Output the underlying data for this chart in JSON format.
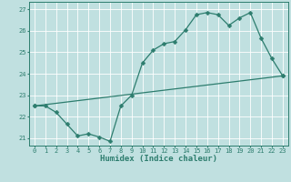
{
  "title": "",
  "xlabel": "Humidex (Indice chaleur)",
  "bg_color": "#c0e0e0",
  "grid_color": "#ffffff",
  "line_color": "#2d7d6e",
  "xlim": [
    -0.5,
    23.5
  ],
  "ylim": [
    20.65,
    27.35
  ],
  "xticks": [
    0,
    1,
    2,
    3,
    4,
    5,
    6,
    7,
    8,
    9,
    10,
    11,
    12,
    13,
    14,
    15,
    16,
    17,
    18,
    19,
    20,
    21,
    22,
    23
  ],
  "yticks": [
    21,
    22,
    23,
    24,
    25,
    26,
    27
  ],
  "line1_x": [
    0,
    1,
    2,
    3,
    4,
    5,
    6,
    7,
    8,
    9,
    10,
    11,
    12,
    13,
    14,
    15,
    16,
    17,
    18,
    19,
    20,
    21,
    22,
    23
  ],
  "line1_y": [
    22.5,
    22.5,
    22.2,
    21.65,
    21.1,
    21.2,
    21.05,
    20.85,
    22.5,
    23.0,
    24.5,
    25.1,
    25.4,
    25.5,
    26.05,
    26.75,
    26.85,
    26.75,
    26.25,
    26.6,
    26.85,
    25.65,
    24.7,
    23.9
  ],
  "line2_x": [
    0,
    23
  ],
  "line2_y": [
    22.5,
    23.9
  ],
  "marker_size": 2.5,
  "line_width": 0.9,
  "tick_fontsize": 5.0,
  "xlabel_fontsize": 6.5
}
